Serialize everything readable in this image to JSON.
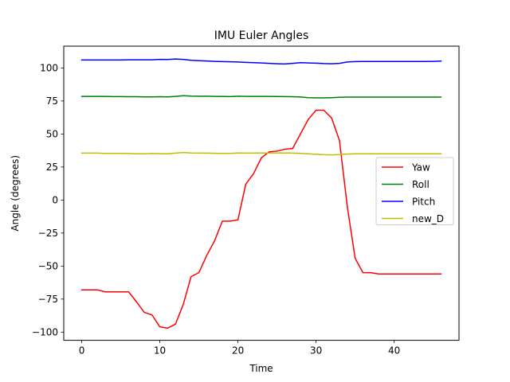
{
  "chart_data": {
    "type": "line",
    "title": "IMU Euler Angles",
    "xlabel": "Time",
    "ylabel": "Angle (degrees)",
    "xlim": [
      -2.3,
      48.3
    ],
    "ylim": [
      -106.2,
      116.5
    ],
    "xticks": [
      0,
      10,
      20,
      30,
      40
    ],
    "yticks": [
      -100,
      -75,
      -50,
      -25,
      0,
      25,
      50,
      75,
      100
    ],
    "grid": false,
    "legend_position": "center-right",
    "x": [
      0,
      1,
      2,
      3,
      4,
      5,
      6,
      7,
      8,
      9,
      10,
      11,
      12,
      13,
      14,
      15,
      16,
      17,
      18,
      19,
      20,
      21,
      22,
      23,
      24,
      25,
      26,
      27,
      28,
      29,
      30,
      31,
      32,
      33,
      34,
      35,
      36,
      37,
      38,
      39,
      40,
      41,
      42,
      43,
      44,
      45,
      46
    ],
    "series": [
      {
        "name": "Yaw",
        "color": "#ff0000",
        "values": [
          -68,
          -68,
          -68,
          -69.5,
          -69.5,
          -69.5,
          -69.5,
          -77,
          -85,
          -87,
          -96,
          -97,
          -94,
          -79,
          -58,
          -55,
          -42,
          -31,
          -16,
          -16,
          -15,
          12,
          20,
          32,
          36.5,
          37,
          38.5,
          39,
          50,
          61,
          68,
          68,
          62,
          45,
          -5,
          -44,
          -55,
          -55,
          -56,
          -56,
          -56,
          -56,
          -56,
          -56,
          -56,
          -56,
          -56
        ]
      },
      {
        "name": "Roll",
        "color": "#008000",
        "values": [
          78.5,
          78.5,
          78.5,
          78.5,
          78.3,
          78.3,
          78.2,
          78.2,
          78.1,
          78.1,
          78.2,
          78.1,
          78.5,
          79,
          78.7,
          78.6,
          78.6,
          78.5,
          78.5,
          78.3,
          78.6,
          78.5,
          78.5,
          78.5,
          78.5,
          78.4,
          78.3,
          78.2,
          78,
          77.5,
          77.3,
          77.3,
          77.5,
          77.8,
          77.9,
          77.9,
          77.9,
          77.9,
          77.9,
          77.9,
          77.9,
          77.9,
          77.9,
          77.9,
          77.9,
          77.9,
          77.9
        ]
      },
      {
        "name": "Pitch",
        "color": "#0000ff",
        "values": [
          106,
          106,
          106,
          106,
          106,
          106,
          106.2,
          106.2,
          106.2,
          106.2,
          106.5,
          106.4,
          106.8,
          106.5,
          105.8,
          105.5,
          105.3,
          105,
          104.8,
          104.7,
          104.5,
          104.2,
          104,
          103.8,
          103.5,
          103.2,
          103,
          103.5,
          104,
          103.8,
          103.6,
          103.3,
          103.2,
          103.5,
          104.5,
          104.8,
          104.9,
          104.9,
          104.9,
          104.9,
          104.9,
          104.9,
          104.9,
          104.9,
          104.9,
          105,
          105.2
        ]
      },
      {
        "name": "new_D",
        "color": "#bfbf00",
        "values": [
          35.5,
          35.5,
          35.5,
          35.3,
          35.3,
          35.3,
          35.2,
          35,
          35,
          35.2,
          35.1,
          35,
          35.5,
          36,
          35.6,
          35.5,
          35.5,
          35.4,
          35.3,
          35.3,
          35.6,
          35.5,
          35.5,
          35.6,
          35.6,
          35.6,
          35.6,
          35.5,
          35.3,
          35,
          34.6,
          34.3,
          34.2,
          34.4,
          34.8,
          35,
          35,
          35,
          35,
          35,
          35,
          35,
          35,
          35,
          35,
          35,
          35
        ]
      }
    ]
  }
}
